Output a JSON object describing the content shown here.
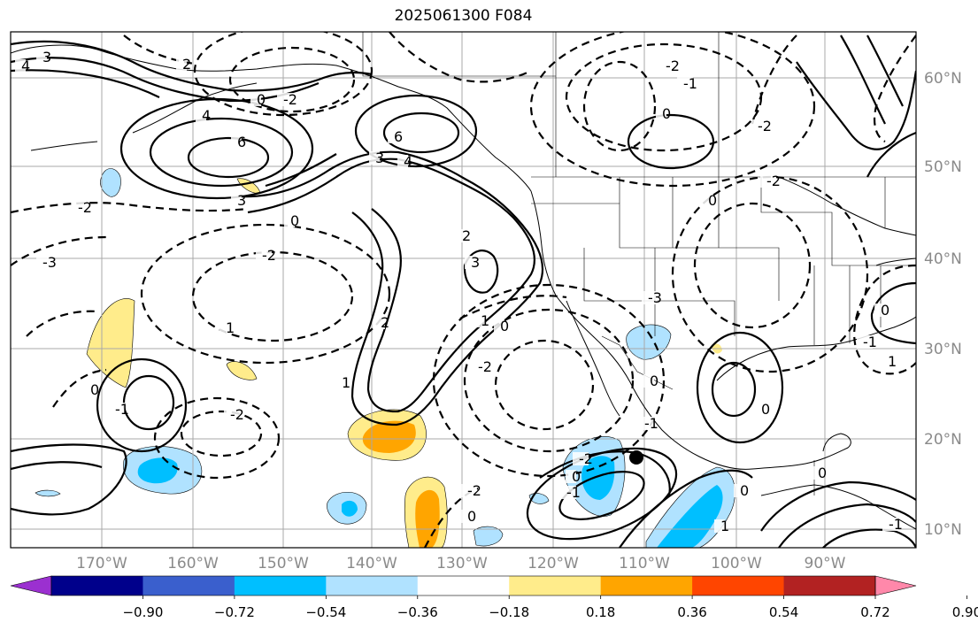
{
  "title": "2025061300 F084",
  "map": {
    "lon_labels": [
      "170°W",
      "160°W",
      "150°W",
      "140°W",
      "130°W",
      "120°W",
      "110°W",
      "100°W",
      "90°W"
    ],
    "lat_labels": [
      "60°N",
      "50°N",
      "40°N",
      "30°N",
      "20°N",
      "10°N"
    ],
    "contour_labels": [
      "4",
      "3",
      "2",
      "4",
      "6",
      "3",
      "-2",
      "0",
      "-2",
      "-3",
      "-2",
      "1",
      "0",
      "1",
      "2",
      "0",
      "-1",
      "-2",
      "6",
      "4",
      "3",
      "2",
      "3",
      "1",
      "0",
      "-2",
      "-3",
      "0",
      "-1",
      "-2",
      "-2",
      "0",
      "-2",
      "-1",
      "0",
      "0",
      "1",
      "-1",
      "0",
      "0",
      "-2",
      "0",
      "-2",
      "0",
      "-1",
      "1",
      "0",
      "-1"
    ],
    "colors": {
      "grid": "#a8a8a8",
      "contour": "#000000",
      "land": "#000000"
    },
    "marker": "black dot near 18°N 110°W"
  },
  "colorbar": {
    "labels": [
      "−0.90",
      "−0.72",
      "−0.54",
      "−0.36",
      "−0.18",
      "0.18",
      "0.36",
      "0.54",
      "0.72",
      "0.90"
    ],
    "colors": [
      "#9b30d0",
      "#00008b",
      "#3a5fcd",
      "#00bfff",
      "#b0e2ff",
      "#ffffff",
      "#ffec8b",
      "#ffa500",
      "#ff4500",
      "#b22222",
      "#ff88aa"
    ]
  }
}
